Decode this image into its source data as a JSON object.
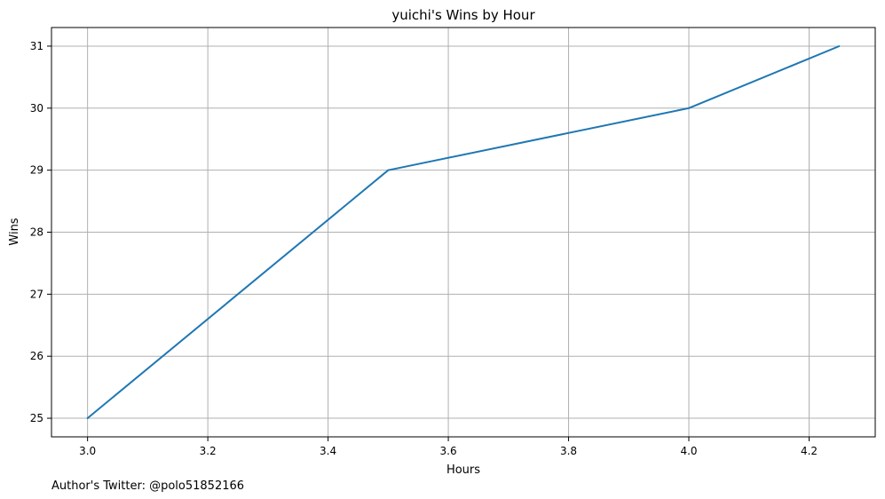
{
  "chart_data": {
    "type": "line",
    "title": "yuichi's Wins by Hour",
    "xlabel": "Hours",
    "ylabel": "Wins",
    "x": [
      3.0,
      3.5,
      4.0,
      4.25
    ],
    "series": [
      {
        "values": [
          25,
          29,
          30,
          31
        ]
      }
    ],
    "xlim": [
      2.94,
      4.31
    ],
    "ylim": [
      24.7,
      31.3
    ],
    "xticks": [
      "3.0",
      "3.2",
      "3.4",
      "3.6",
      "3.8",
      "4.0",
      "4.2"
    ],
    "yticks": [
      "25",
      "26",
      "27",
      "28",
      "29",
      "30",
      "31"
    ],
    "grid": true,
    "line_color": "#1f77b4",
    "grid_color": "#b0b0b0"
  },
  "footer": {
    "credit": "Author's Twitter: @polo51852166"
  }
}
